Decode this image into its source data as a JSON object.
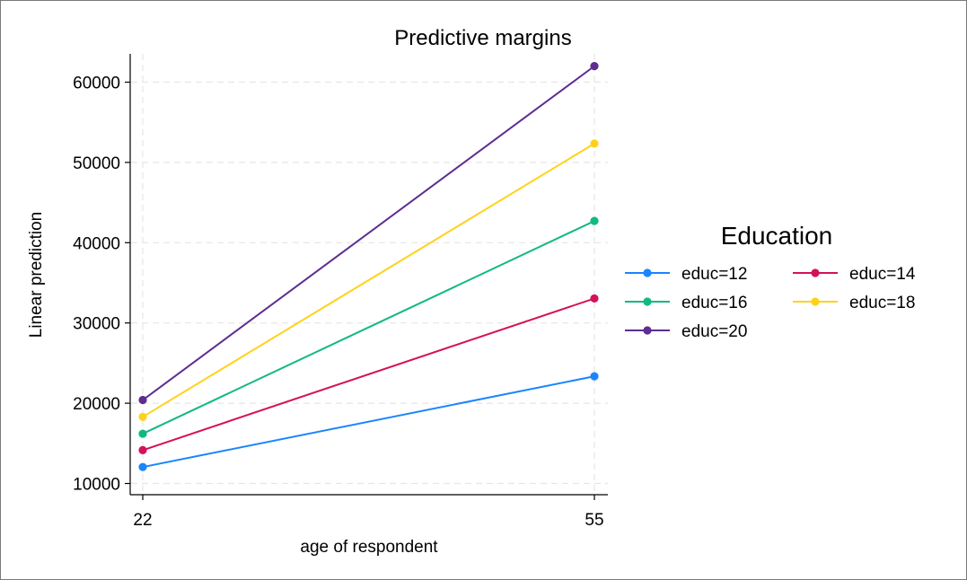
{
  "chart_data": {
    "type": "line",
    "title": "Predictive margins",
    "xlabel": "age of respondent",
    "ylabel": "Linear prediction",
    "x": [
      22,
      55
    ],
    "x_ticks": [
      "22",
      "55"
    ],
    "y_ticks": [
      "10000",
      "20000",
      "30000",
      "40000",
      "50000",
      "60000"
    ],
    "y_tick_values": [
      10000,
      20000,
      30000,
      40000,
      50000,
      60000
    ],
    "ylim": [
      8600,
      63500
    ],
    "grid": true,
    "legend_title": "Education",
    "legend_placement": "right",
    "series": [
      {
        "name": "educ=12",
        "color": "#1a85ff",
        "values": [
          12050,
          23350
        ]
      },
      {
        "name": "educ=14",
        "color": "#d41159",
        "values": [
          14150,
          33050
        ]
      },
      {
        "name": "educ=16",
        "color": "#10b981",
        "values": [
          16200,
          42700
        ]
      },
      {
        "name": "educ=18",
        "color": "#ffd21a",
        "values": [
          18300,
          52350
        ]
      },
      {
        "name": "educ=20",
        "color": "#5e2d91",
        "values": [
          20400,
          62000
        ]
      }
    ]
  }
}
